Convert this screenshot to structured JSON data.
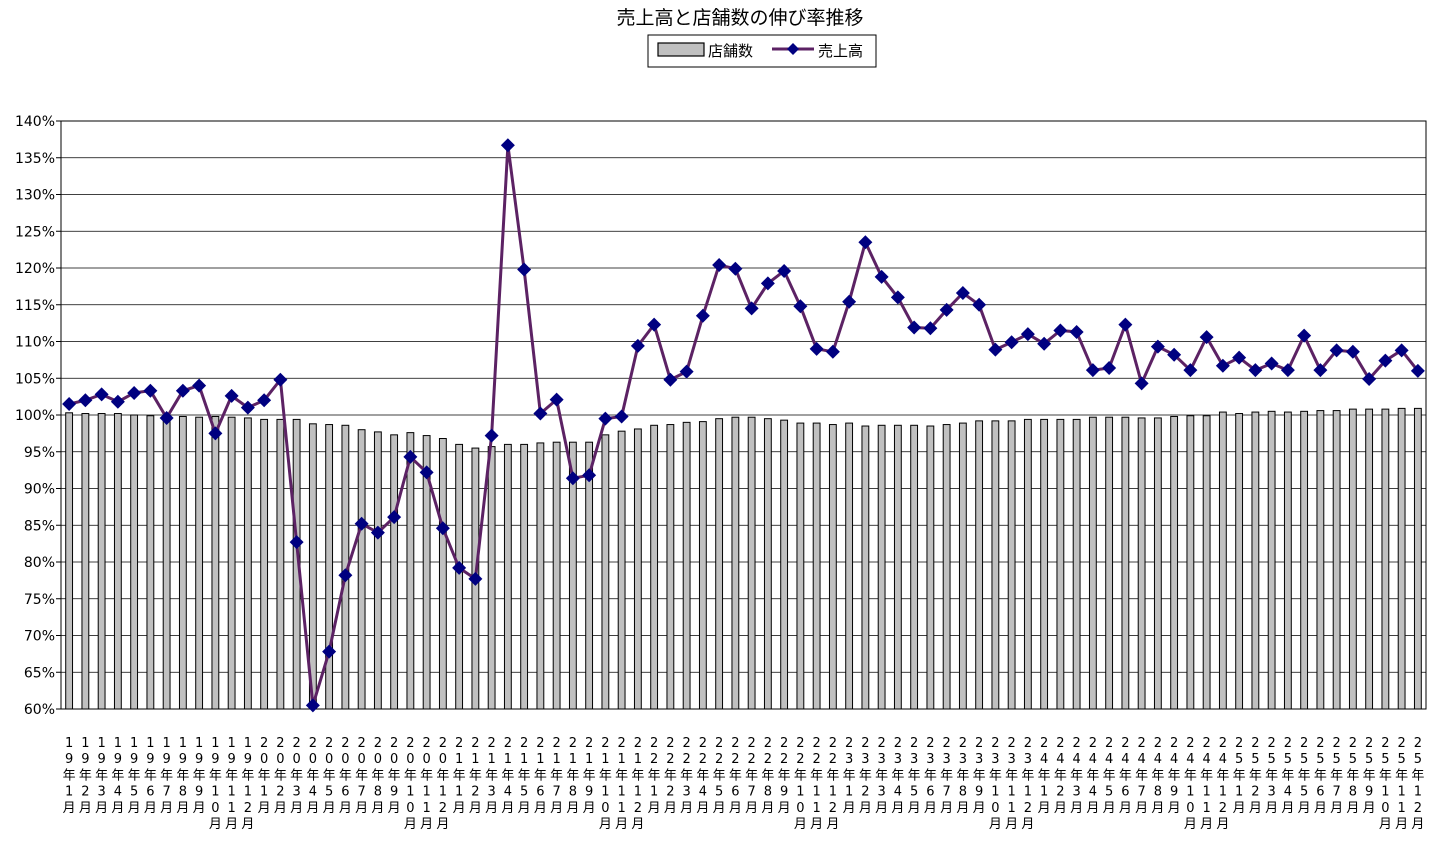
{
  "chart_data": {
    "type": "bar",
    "title": "売上高と店舗数の伸び率推移",
    "xlabel": "",
    "ylabel": "",
    "ylim": [
      0.6,
      1.4
    ],
    "yticks": [
      "60%",
      "65%",
      "70%",
      "75%",
      "80%",
      "85%",
      "90%",
      "95%",
      "100%",
      "105%",
      "110%",
      "115%",
      "120%",
      "125%",
      "130%",
      "135%",
      "140%"
    ],
    "grid": true,
    "legend_position": "top-center",
    "colors": {
      "bar_fill": "#c0c0c0",
      "bar_stroke": "#000000",
      "line": "#5c2264",
      "marker": "#000080"
    },
    "categories": [
      "19年1月",
      "19年2月",
      "19年3月",
      "19年4月",
      "19年5月",
      "19年6月",
      "19年7月",
      "19年8月",
      "19年9月",
      "19年10月",
      "19年11月",
      "19年12月",
      "20年1月",
      "20年2月",
      "20年3月",
      "20年4月",
      "20年5月",
      "20年6月",
      "20年7月",
      "20年8月",
      "20年9月",
      "20年10月",
      "20年11月",
      "20年12月",
      "21年1月",
      "21年2月",
      "21年3月",
      "21年4月",
      "21年5月",
      "21年6月",
      "21年7月",
      "21年8月",
      "21年9月",
      "21年10月",
      "21年11月",
      "21年12月",
      "22年1月",
      "22年2月",
      "22年3月",
      "22年4月",
      "22年5月",
      "22年6月",
      "22年7月",
      "22年8月",
      "22年9月",
      "22年10月",
      "22年11月",
      "22年12月",
      "23年1月",
      "23年2月",
      "23年3月",
      "23年4月",
      "23年5月",
      "23年6月",
      "23年7月",
      "23年8月",
      "23年9月",
      "23年10月",
      "23年11月",
      "23年12月",
      "24年1月",
      "24年2月",
      "24年3月",
      "24年4月",
      "24年5月",
      "24年6月",
      "24年7月",
      "24年8月",
      "24年9月",
      "24年10月",
      "24年11月",
      "24年12月",
      "25年1月",
      "25年2月",
      "25年3月",
      "25年4月",
      "25年5月",
      "25年6月",
      "25年7月",
      "25年8月",
      "25年9月",
      "25年10月",
      "25年11月",
      "25年12月"
    ],
    "series": [
      {
        "name": "店舗数",
        "type": "bar",
        "values": [
          1.003,
          1.002,
          1.002,
          1.002,
          1.0,
          0.999,
          0.999,
          0.998,
          0.997,
          0.998,
          0.997,
          0.996,
          0.994,
          0.994,
          0.994,
          0.988,
          0.987,
          0.986,
          0.98,
          0.977,
          0.973,
          0.976,
          0.972,
          0.968,
          0.96,
          0.955,
          0.957,
          0.96,
          0.96,
          0.962,
          0.963,
          0.963,
          0.963,
          0.973,
          0.978,
          0.981,
          0.986,
          0.987,
          0.99,
          0.991,
          0.995,
          0.997,
          0.997,
          0.995,
          0.993,
          0.989,
          0.989,
          0.987,
          0.989,
          0.985,
          0.986,
          0.986,
          0.986,
          0.985,
          0.987,
          0.989,
          0.992,
          0.992,
          0.992,
          0.994,
          0.994,
          0.994,
          0.994,
          0.997,
          0.997,
          0.997,
          0.996,
          0.996,
          0.998,
          0.999,
          0.999,
          1.004,
          1.002,
          1.004,
          1.005,
          1.004,
          1.005,
          1.006,
          1.006,
          1.008,
          1.008,
          1.008,
          1.009,
          1.009
        ]
      },
      {
        "name": "売上高",
        "type": "line",
        "values": [
          1.015,
          1.02,
          1.028,
          1.018,
          1.03,
          1.033,
          0.996,
          1.033,
          1.04,
          0.975,
          1.026,
          1.01,
          1.02,
          1.048,
          0.827,
          0.605,
          0.678,
          0.782,
          0.852,
          0.84,
          0.861,
          0.943,
          0.922,
          0.846,
          0.792,
          0.777,
          0.972,
          1.367,
          1.198,
          1.002,
          1.021,
          0.914,
          0.918,
          0.995,
          0.998,
          1.094,
          1.123,
          1.048,
          1.059,
          1.135,
          1.204,
          1.199,
          1.145,
          1.179,
          1.196,
          1.148,
          1.09,
          1.086,
          1.154,
          1.235,
          1.188,
          1.16,
          1.119,
          1.118,
          1.143,
          1.166,
          1.15,
          1.089,
          1.099,
          1.11,
          1.097,
          1.115,
          1.113,
          1.061,
          1.064,
          1.123,
          1.043,
          1.093,
          1.082,
          1.061,
          1.106,
          1.067,
          1.078,
          1.061,
          1.07,
          1.061,
          1.108,
          1.061,
          1.088,
          1.086,
          1.049,
          1.074,
          1.088,
          1.06
        ]
      }
    ]
  }
}
